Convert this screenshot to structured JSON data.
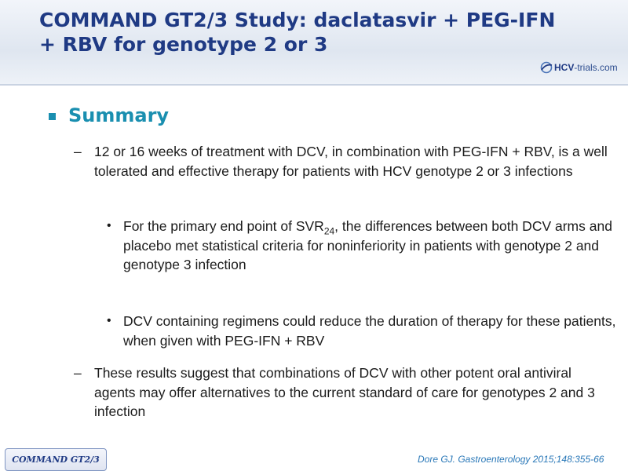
{
  "slide": {
    "title_line1": "COMMAND GT2/3 Study: daclatasvir + PEG-IFN",
    "title_line2": "+ RBV for genotype 2 or 3",
    "logo": {
      "icon": "swoosh-logo-icon",
      "brand_prefix": "HCV",
      "brand_suffix": "-trials.com",
      "accent_color": "#1f3a84"
    },
    "heading": "Summary",
    "points": [
      {
        "marker": "–",
        "text": "12 or 16 weeks of treatment with DCV, in combination with PEG-IFN + RBV, is a well tolerated and effective therapy for patients with HCV genotype 2 or 3 infections",
        "subpoints": [
          {
            "marker": "•",
            "text_before": "For the primary end point of SVR",
            "subscript": "24",
            "text_after": ", the differences between both DCV arms and placebo met statistical criteria for noninferiority in patients with genotype 2 and genotype 3 infection"
          },
          {
            "marker": "•",
            "text": "DCV containing regimens could reduce the duration of therapy for these patients, when given with PEG-IFN + RBV"
          }
        ]
      },
      {
        "marker": "–",
        "text": "These results suggest that combinations of DCV with other potent oral antiviral agents may offer alternatives to the current standard of care for genotypes 2 and 3 infection"
      }
    ],
    "reference": "Dore GJ. Gastroenterology 2015;148:355-66",
    "study_tag": "COMMAND GT2/3",
    "colors": {
      "title": "#1f3a84",
      "heading": "#1a8fb0",
      "reference": "#2a78b8"
    }
  }
}
